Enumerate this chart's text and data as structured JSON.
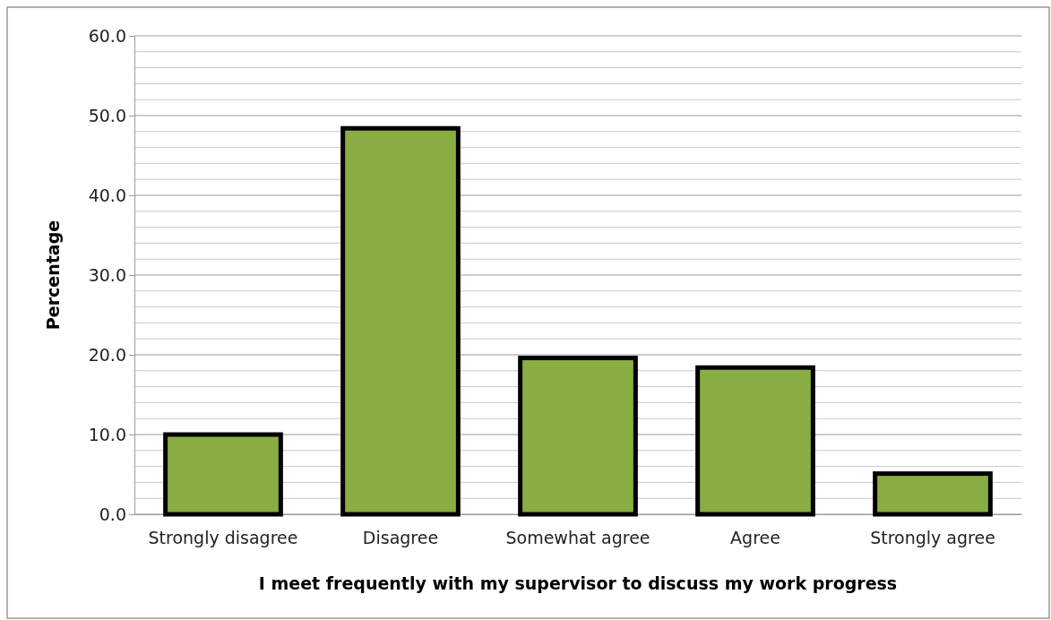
{
  "chart_data": {
    "type": "bar",
    "xlabel": "I meet frequently with my supervisor to discuss my work progress",
    "ylabel": "Percentage",
    "categories": [
      "Strongly disagree",
      "Disagree",
      "Somewhat agree",
      "Agree",
      "Strongly agree"
    ],
    "values": [
      10.0,
      48.4,
      19.6,
      18.4,
      5.1
    ],
    "color": "#8aad43",
    "ylim": [
      0,
      60
    ],
    "yticks": [
      {
        "value": 0,
        "label": "0.0"
      },
      {
        "value": 10,
        "label": "10.0"
      },
      {
        "value": 20,
        "label": "20.0"
      },
      {
        "value": 30,
        "label": "30.0"
      },
      {
        "value": 40,
        "label": "40.0"
      },
      {
        "value": 50,
        "label": "50.0"
      },
      {
        "value": 60,
        "label": "60.0"
      }
    ],
    "grid": true
  }
}
